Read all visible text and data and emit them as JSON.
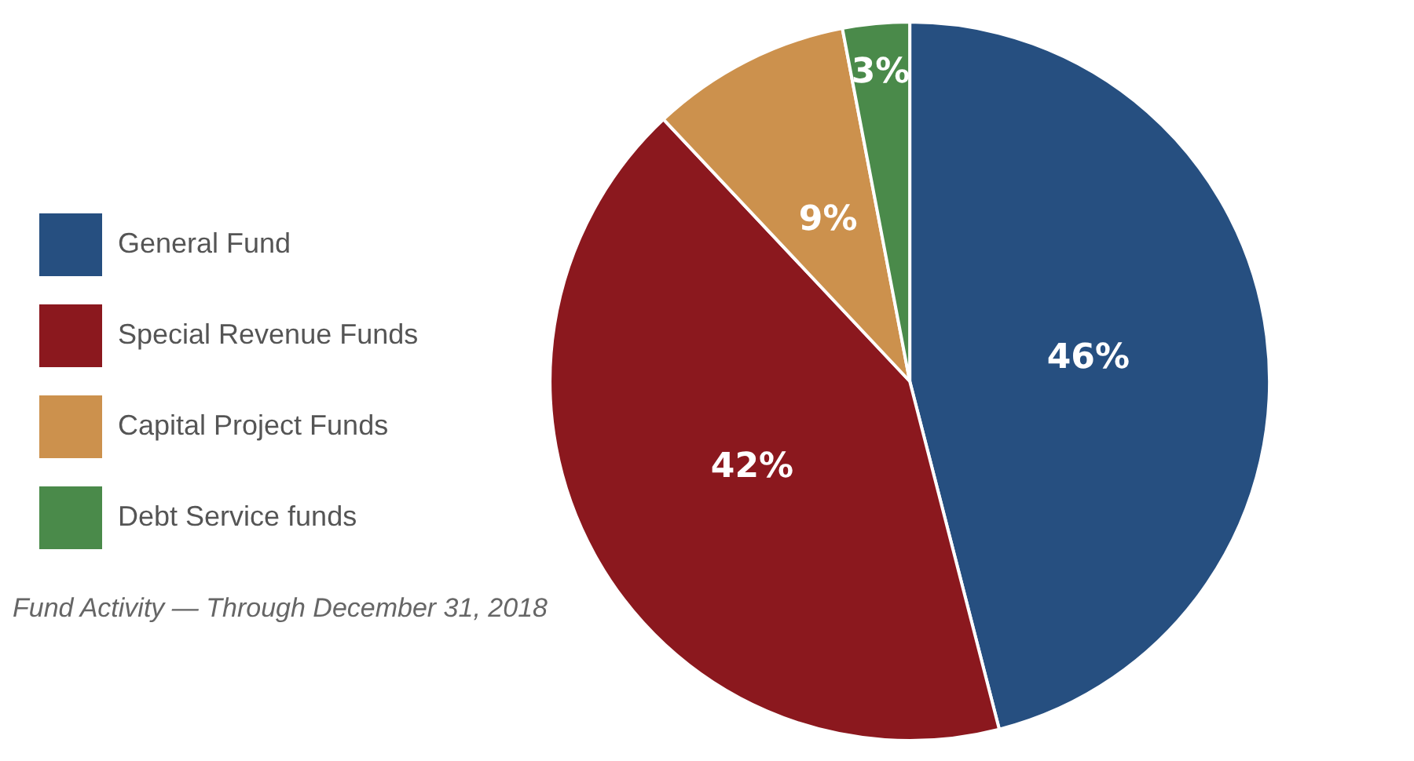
{
  "chart_data": {
    "type": "pie",
    "categories": [
      "General Fund",
      "Special Revenue Funds",
      "Capital Project Funds",
      "Debt Service funds"
    ],
    "values": [
      46,
      42,
      9,
      3
    ],
    "colors": [
      "#264f80",
      "#8b181e",
      "#cc914d",
      "#4a8a4a"
    ],
    "value_labels": [
      "46%",
      "42%",
      "9%",
      "3%"
    ],
    "legend": "left",
    "annotations": [
      "Fund Activity — Through December 31, 2018"
    ]
  }
}
